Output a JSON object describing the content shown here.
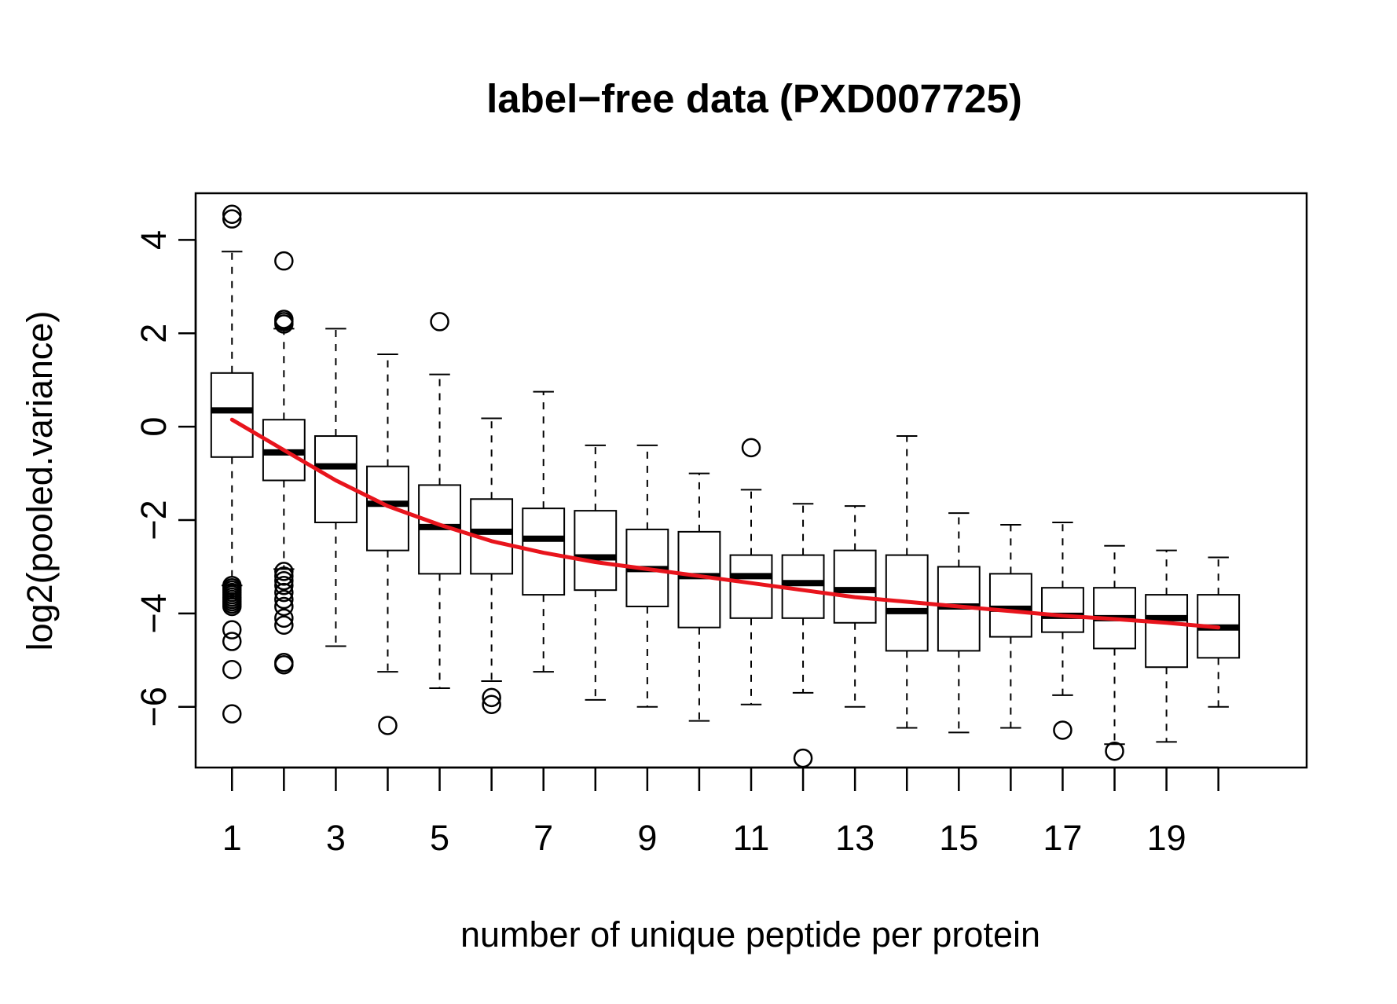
{
  "chart_data": {
    "type": "boxplot",
    "title": "label−free data (PXD007725)",
    "xlabel": "number of unique peptide per protein",
    "ylabel": "log2(pooled.variance)",
    "categories": [
      1,
      2,
      3,
      4,
      5,
      6,
      7,
      8,
      9,
      10,
      11,
      12,
      13,
      14,
      15,
      16,
      17,
      18,
      19,
      20
    ],
    "x_tick_labels": [
      "1",
      "3",
      "5",
      "7",
      "9",
      "11",
      "13",
      "15",
      "17",
      "19"
    ],
    "y_ticks": [
      -6,
      -4,
      -2,
      0,
      2,
      4
    ],
    "y_tick_labels": [
      "−6",
      "−4",
      "−2",
      "0",
      "2",
      "4"
    ],
    "xlim": [
      0.3,
      21.7
    ],
    "ylim": [
      -7.3,
      5.0
    ],
    "grid": false,
    "legend": "none",
    "colors": {
      "box": "#000000",
      "trend": "#e8141c"
    },
    "boxes": [
      {
        "x": 1,
        "lower_whisker": -3.4,
        "q1": -0.65,
        "median": 0.35,
        "q3": 1.15,
        "upper_whisker": 3.75,
        "outliers": [
          4.55,
          4.45,
          -3.4,
          -3.45,
          -3.5,
          -3.55,
          -3.6,
          -3.65,
          -3.7,
          -3.75,
          -3.8,
          -3.85,
          -4.35,
          -4.6,
          -5.2,
          -6.15
        ]
      },
      {
        "x": 2,
        "lower_whisker": -3.05,
        "q1": -1.15,
        "median": -0.55,
        "q3": 0.15,
        "upper_whisker": 2.1,
        "outliers": [
          3.55,
          2.3,
          2.25,
          2.2,
          -3.1,
          -3.2,
          -3.3,
          -3.4,
          -3.55,
          -3.7,
          -3.85,
          -4.1,
          -4.25,
          -5.05,
          -5.1
        ]
      },
      {
        "x": 3,
        "lower_whisker": -4.7,
        "q1": -2.05,
        "median": -0.85,
        "q3": -0.2,
        "upper_whisker": 2.1,
        "outliers": []
      },
      {
        "x": 4,
        "lower_whisker": -5.25,
        "q1": -2.65,
        "median": -1.65,
        "q3": -0.85,
        "upper_whisker": 1.55,
        "outliers": [
          -6.4
        ]
      },
      {
        "x": 5,
        "lower_whisker": -5.6,
        "q1": -3.15,
        "median": -2.15,
        "q3": -1.25,
        "upper_whisker": 1.12,
        "outliers": [
          2.25
        ]
      },
      {
        "x": 6,
        "lower_whisker": -5.45,
        "q1": -3.15,
        "median": -2.25,
        "q3": -1.55,
        "upper_whisker": 0.18,
        "outliers": [
          -5.8,
          -5.95
        ]
      },
      {
        "x": 7,
        "lower_whisker": -5.25,
        "q1": -3.6,
        "median": -2.4,
        "q3": -1.75,
        "upper_whisker": 0.75,
        "outliers": []
      },
      {
        "x": 8,
        "lower_whisker": -5.85,
        "q1": -3.5,
        "median": -2.8,
        "q3": -1.8,
        "upper_whisker": -0.4,
        "outliers": []
      },
      {
        "x": 9,
        "lower_whisker": -6.0,
        "q1": -3.85,
        "median": -3.05,
        "q3": -2.2,
        "upper_whisker": -0.4,
        "outliers": []
      },
      {
        "x": 10,
        "lower_whisker": -6.3,
        "q1": -4.3,
        "median": -3.2,
        "q3": -2.25,
        "upper_whisker": -1.0,
        "outliers": []
      },
      {
        "x": 11,
        "lower_whisker": -5.95,
        "q1": -4.1,
        "median": -3.2,
        "q3": -2.75,
        "upper_whisker": -1.35,
        "outliers": [
          -0.45
        ]
      },
      {
        "x": 12,
        "lower_whisker": -5.7,
        "q1": -4.1,
        "median": -3.35,
        "q3": -2.75,
        "upper_whisker": -1.65,
        "outliers": [
          -7.1
        ]
      },
      {
        "x": 13,
        "lower_whisker": -6.0,
        "q1": -4.2,
        "median": -3.5,
        "q3": -2.65,
        "upper_whisker": -1.7,
        "outliers": []
      },
      {
        "x": 14,
        "lower_whisker": -6.45,
        "q1": -4.8,
        "median": -3.95,
        "q3": -2.75,
        "upper_whisker": -0.2,
        "outliers": []
      },
      {
        "x": 15,
        "lower_whisker": -6.55,
        "q1": -4.8,
        "median": -3.85,
        "q3": -3.0,
        "upper_whisker": -1.85,
        "outliers": []
      },
      {
        "x": 16,
        "lower_whisker": -6.45,
        "q1": -4.5,
        "median": -3.9,
        "q3": -3.15,
        "upper_whisker": -2.1,
        "outliers": []
      },
      {
        "x": 17,
        "lower_whisker": -5.75,
        "q1": -4.4,
        "median": -4.05,
        "q3": -3.45,
        "upper_whisker": -2.05,
        "outliers": [
          -6.5
        ]
      },
      {
        "x": 18,
        "lower_whisker": -6.8,
        "q1": -4.75,
        "median": -4.1,
        "q3": -3.45,
        "upper_whisker": -2.55,
        "outliers": [
          -6.95
        ]
      },
      {
        "x": 19,
        "lower_whisker": -6.75,
        "q1": -5.15,
        "median": -4.1,
        "q3": -3.6,
        "upper_whisker": -2.65,
        "outliers": []
      },
      {
        "x": 20,
        "lower_whisker": -6.0,
        "q1": -4.95,
        "median": -4.3,
        "q3": -3.6,
        "upper_whisker": -2.8,
        "outliers": []
      }
    ],
    "trend_line": {
      "x": [
        1,
        2,
        3,
        4,
        5,
        6,
        7,
        8,
        9,
        10,
        11,
        12,
        13,
        14,
        15,
        16,
        17,
        18,
        19,
        20
      ],
      "y": [
        0.15,
        -0.5,
        -1.15,
        -1.7,
        -2.1,
        -2.45,
        -2.7,
        -2.9,
        -3.05,
        -3.2,
        -3.35,
        -3.5,
        -3.65,
        -3.75,
        -3.85,
        -3.95,
        -4.05,
        -4.12,
        -4.2,
        -4.3
      ]
    }
  }
}
